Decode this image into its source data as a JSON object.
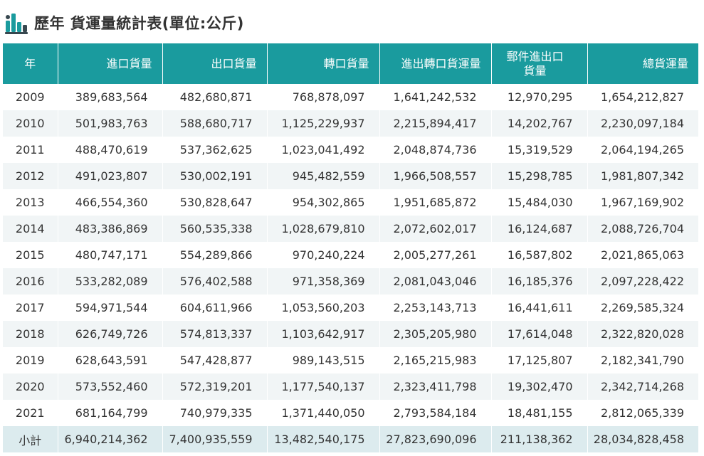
{
  "title": "歷年 貨運量統計表(單位:公斤)",
  "icon": "bar-chart-icon",
  "colors": {
    "header_bg": "#1a9b9e",
    "icon_teal": "#1a9b9e",
    "icon_dark": "#37474f",
    "stripe": "#f1f5f6",
    "total_bg": "#dcebee"
  },
  "headers": [
    "年",
    "進口貨量",
    "出口貨量",
    "轉口貨量",
    "進出轉口貨運量",
    "郵件進出口\n貨量",
    "總貨運量"
  ],
  "rows": [
    [
      "2009",
      "389,683,564",
      "482,680,871",
      "768,878,097",
      "1,641,242,532",
      "12,970,295",
      "1,654,212,827"
    ],
    [
      "2010",
      "501,983,763",
      "588,680,717",
      "1,125,229,937",
      "2,215,894,417",
      "14,202,767",
      "2,230,097,184"
    ],
    [
      "2011",
      "488,470,619",
      "537,362,625",
      "1,023,041,492",
      "2,048,874,736",
      "15,319,529",
      "2,064,194,265"
    ],
    [
      "2012",
      "491,023,807",
      "530,002,191",
      "945,482,559",
      "1,966,508,557",
      "15,298,785",
      "1,981,807,342"
    ],
    [
      "2013",
      "466,554,360",
      "530,828,647",
      "954,302,865",
      "1,951,685,872",
      "15,484,030",
      "1,967,169,902"
    ],
    [
      "2014",
      "483,386,869",
      "560,535,338",
      "1,028,679,810",
      "2,072,602,017",
      "16,124,687",
      "2,088,726,704"
    ],
    [
      "2015",
      "480,747,171",
      "554,289,866",
      "970,240,224",
      "2,005,277,261",
      "16,587,802",
      "2,021,865,063"
    ],
    [
      "2016",
      "533,282,089",
      "576,402,588",
      "971,358,369",
      "2,081,043,046",
      "16,185,376",
      "2,097,228,422"
    ],
    [
      "2017",
      "594,971,544",
      "604,611,966",
      "1,053,560,203",
      "2,253,143,713",
      "16,441,611",
      "2,269,585,324"
    ],
    [
      "2018",
      "626,749,726",
      "574,813,337",
      "1,103,642,917",
      "2,305,205,980",
      "17,614,048",
      "2,322,820,028"
    ],
    [
      "2019",
      "628,643,591",
      "547,428,877",
      "989,143,515",
      "2,165,215,983",
      "17,125,807",
      "2,182,341,790"
    ],
    [
      "2020",
      "573,552,460",
      "572,319,201",
      "1,177,540,137",
      "2,323,411,798",
      "19,302,470",
      "2,342,714,268"
    ],
    [
      "2021",
      "681,164,799",
      "740,979,335",
      "1,371,440,050",
      "2,793,584,184",
      "18,481,155",
      "2,812,065,339"
    ]
  ],
  "total": [
    "小計",
    "6,940,214,362",
    "7,400,935,559",
    "13,482,540,175",
    "27,823,690,096",
    "211,138,362",
    "28,034,828,458"
  ]
}
